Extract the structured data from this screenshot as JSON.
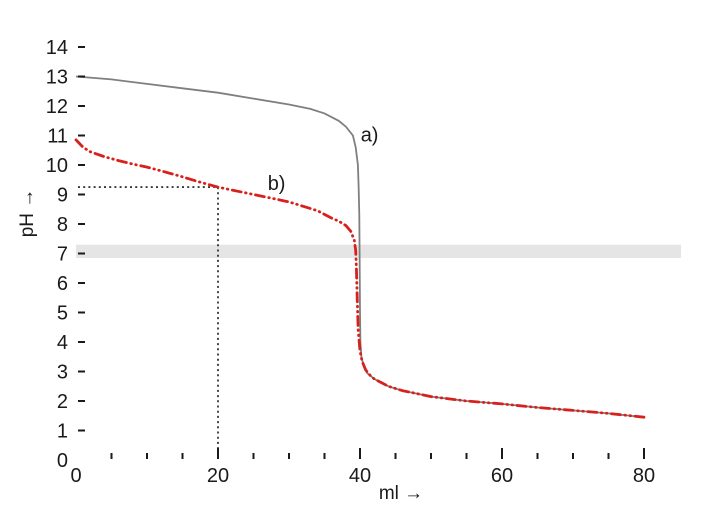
{
  "chart_data": {
    "type": "line",
    "title": "",
    "xlabel": "ml →",
    "ylabel": "pH →",
    "xlim": [
      0,
      85.8
    ],
    "ylim": [
      0,
      15
    ],
    "x_major_ticks": [
      0,
      20,
      40,
      60,
      80
    ],
    "x_minor_ticks": [
      5,
      10,
      15,
      25,
      30,
      35,
      45,
      50,
      55,
      65,
      70,
      75
    ],
    "y_ticks": [
      0,
      1,
      2,
      3,
      4,
      5,
      6,
      7,
      8,
      9,
      10,
      11,
      12,
      13,
      14
    ],
    "grid": "off",
    "legend_position": "inline-curve-labels",
    "axis_color": "#1a1a1a",
    "series": [
      {
        "name": "a)",
        "color": "#7f7f7f",
        "line_style": "solid",
        "points": [
          [
            0,
            13.0
          ],
          [
            5,
            12.9
          ],
          [
            10,
            12.75
          ],
          [
            15,
            12.6
          ],
          [
            20,
            12.45
          ],
          [
            25,
            12.25
          ],
          [
            30,
            12.05
          ],
          [
            33,
            11.9
          ],
          [
            35,
            11.75
          ],
          [
            37,
            11.5
          ],
          [
            38,
            11.3
          ],
          [
            39,
            11.0
          ],
          [
            39.4,
            10.6
          ],
          [
            39.7,
            10.0
          ],
          [
            39.8,
            9.3
          ],
          [
            39.9,
            8.3
          ],
          [
            39.95,
            7.0
          ],
          [
            40.0,
            5.0
          ],
          [
            40.05,
            4.0
          ],
          [
            40.2,
            3.5
          ],
          [
            40.5,
            3.2
          ],
          [
            41,
            2.95
          ],
          [
            42,
            2.75
          ],
          [
            44,
            2.5
          ],
          [
            46,
            2.35
          ],
          [
            48,
            2.25
          ],
          [
            50,
            2.15
          ],
          [
            55,
            2.0
          ],
          [
            60,
            1.9
          ],
          [
            65,
            1.78
          ],
          [
            70,
            1.68
          ],
          [
            75,
            1.58
          ],
          [
            80,
            1.45
          ]
        ]
      },
      {
        "name": "b)",
        "color": "#d8201c",
        "line_style": "dash-dot-dot",
        "points": [
          [
            0,
            10.85
          ],
          [
            1,
            10.6
          ],
          [
            2,
            10.45
          ],
          [
            4,
            10.28
          ],
          [
            6,
            10.15
          ],
          [
            8,
            10.03
          ],
          [
            10,
            9.93
          ],
          [
            12,
            9.8
          ],
          [
            15,
            9.6
          ],
          [
            17,
            9.45
          ],
          [
            20,
            9.25
          ],
          [
            22,
            9.15
          ],
          [
            25,
            9.0
          ],
          [
            28,
            8.85
          ],
          [
            30,
            8.75
          ],
          [
            32,
            8.6
          ],
          [
            34,
            8.45
          ],
          [
            36,
            8.2
          ],
          [
            37,
            8.1
          ],
          [
            38,
            7.95
          ],
          [
            38.7,
            7.75
          ],
          [
            39.2,
            7.45
          ],
          [
            39.4,
            7.1
          ],
          [
            39.5,
            6.5
          ],
          [
            39.6,
            5.5
          ],
          [
            39.75,
            4.4
          ],
          [
            40,
            3.7
          ],
          [
            40.3,
            3.35
          ],
          [
            40.8,
            3.05
          ],
          [
            41.5,
            2.85
          ],
          [
            42,
            2.75
          ],
          [
            44,
            2.5
          ],
          [
            46,
            2.35
          ],
          [
            48,
            2.25
          ],
          [
            50,
            2.15
          ],
          [
            55,
            2.0
          ],
          [
            60,
            1.9
          ],
          [
            65,
            1.78
          ],
          [
            70,
            1.68
          ],
          [
            75,
            1.58
          ],
          [
            80,
            1.45
          ]
        ]
      }
    ],
    "annotations": {
      "neutral_band": {
        "ph_from": 6.85,
        "ph_to": 7.3,
        "color": "#e5e5e5"
      },
      "guides": {
        "ml": 20,
        "ph": 9.25,
        "style": "dotted",
        "color": "#1a1a1a"
      },
      "curve_labels": [
        {
          "text": "a)",
          "ml": 40.1,
          "ph": 10.8
        },
        {
          "text": "b)",
          "ml": 27.0,
          "ph": 9.15
        }
      ]
    }
  }
}
